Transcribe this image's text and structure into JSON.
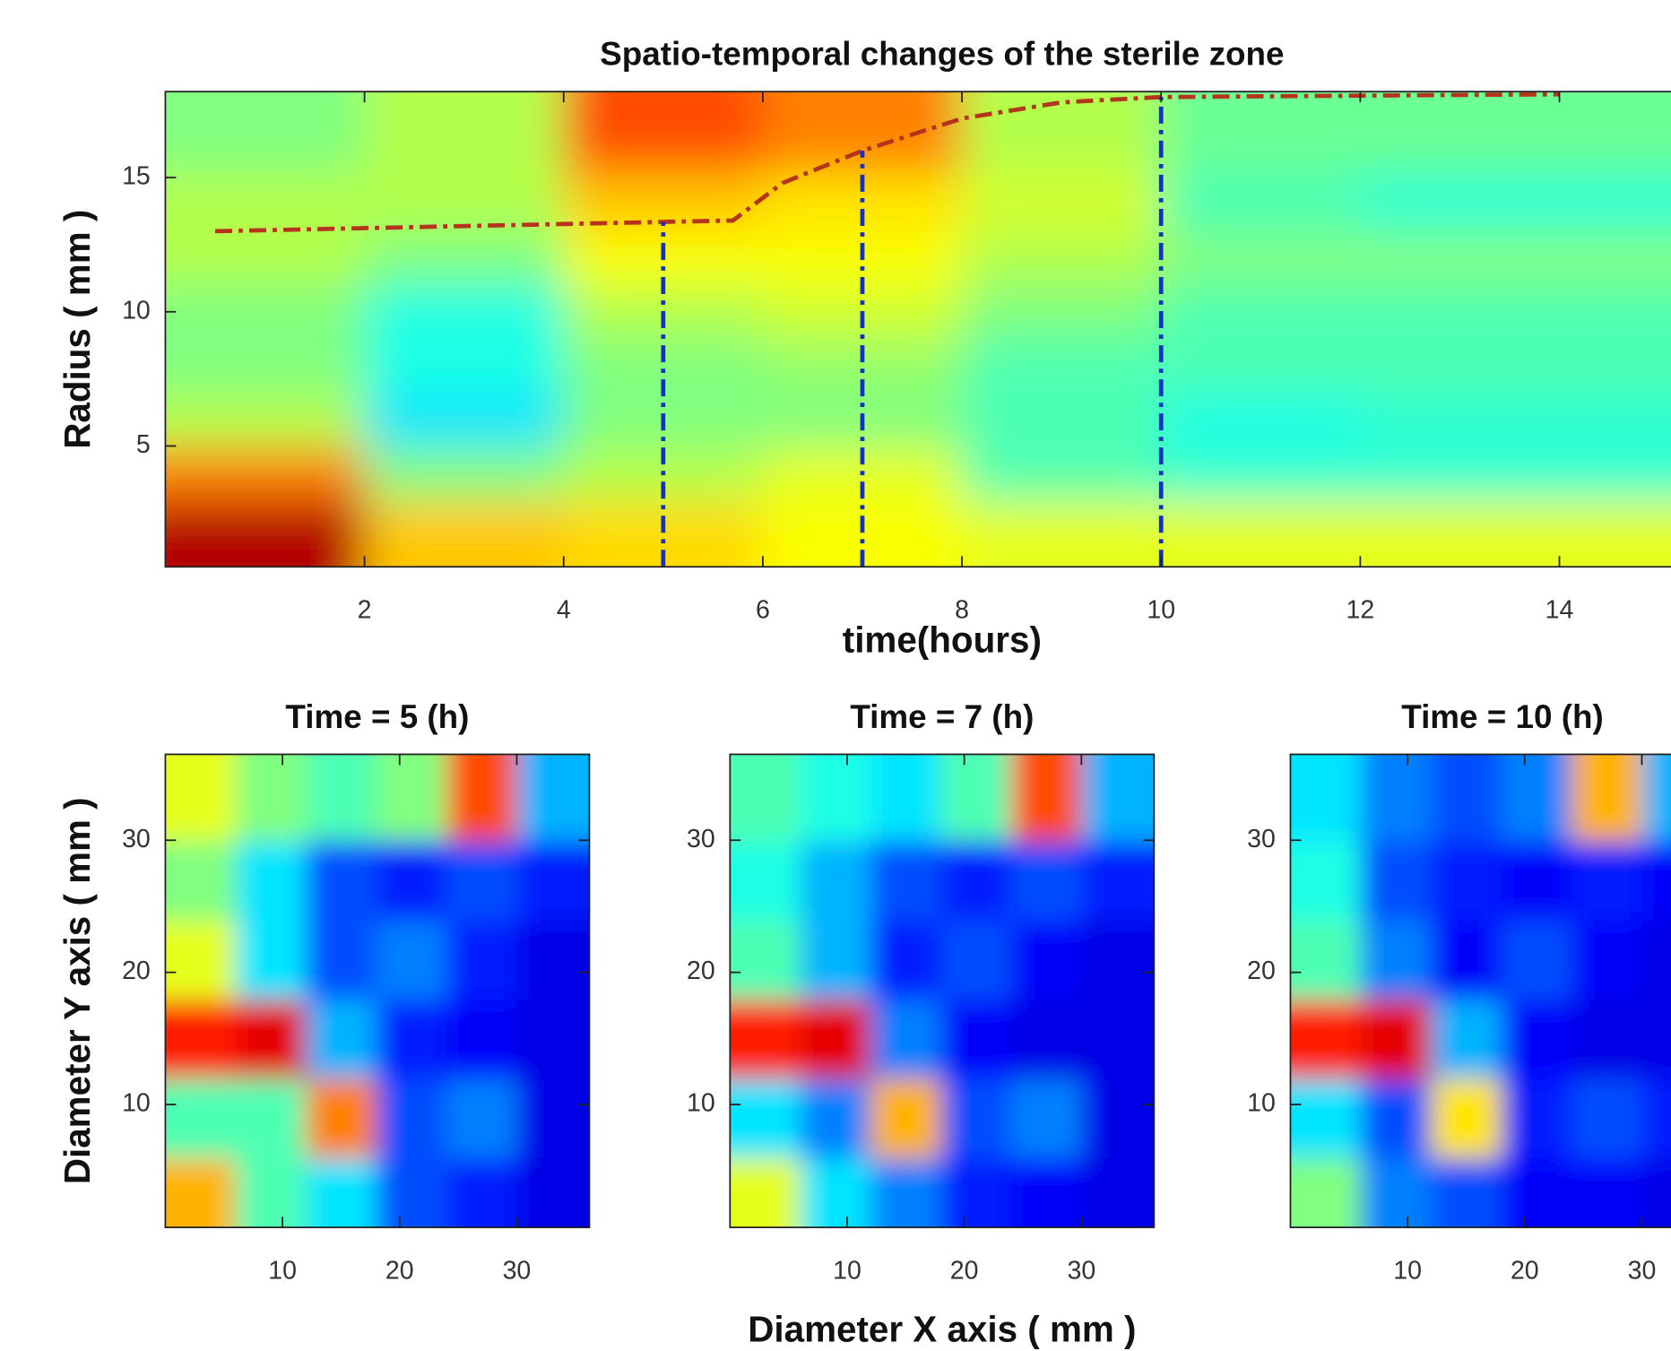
{
  "chart_data": [
    {
      "type": "heatmap",
      "title": "Spatio-temporal changes of the sterile zone",
      "xlabel": "time(hours)",
      "ylabel": "Radius ( mm )",
      "xlim": [
        0,
        15.6
      ],
      "ylim": [
        0.5,
        18.2
      ],
      "xticks": [
        2,
        4,
        6,
        8,
        10,
        12,
        14
      ],
      "yticks": [
        5,
        10,
        15
      ],
      "colormap": "jet",
      "x": [
        1,
        3,
        5,
        7,
        9,
        11,
        13,
        15
      ],
      "y": [
        2,
        4,
        6,
        8,
        10,
        12,
        14,
        16.5
      ],
      "z": [
        [
          0.95,
          0.68,
          0.66,
          0.62,
          0.6,
          0.6,
          0.6,
          0.6
        ],
        [
          0.75,
          0.5,
          0.55,
          0.6,
          0.45,
          0.42,
          0.42,
          0.42
        ],
        [
          0.55,
          0.35,
          0.5,
          0.5,
          0.45,
          0.4,
          0.42,
          0.42
        ],
        [
          0.5,
          0.4,
          0.5,
          0.52,
          0.45,
          0.45,
          0.45,
          0.45
        ],
        [
          0.5,
          0.4,
          0.55,
          0.58,
          0.5,
          0.45,
          0.45,
          0.45
        ],
        [
          0.55,
          0.5,
          0.62,
          0.62,
          0.55,
          0.5,
          0.5,
          0.5
        ],
        [
          0.55,
          0.55,
          0.68,
          0.65,
          0.58,
          0.45,
          0.42,
          0.42
        ],
        [
          0.5,
          0.55,
          0.8,
          0.75,
          0.55,
          0.48,
          0.48,
          0.48
        ]
      ],
      "series": [
        {
          "color": "#b5341c",
          "style": "dashdot",
          "x": [
            0.5,
            5.7,
            6.2,
            7,
            8,
            9,
            10,
            14
          ],
          "values": [
            13,
            13.4,
            14.8,
            16,
            17.2,
            17.8,
            18,
            18.1
          ]
        }
      ],
      "vlines": {
        "color": "#1530c8",
        "style": "dashdot",
        "x": [
          5,
          7,
          10
        ]
      }
    },
    {
      "type": "image",
      "title": "Time = 5 (h)",
      "ylabel": "Diameter Y axis ( mm )",
      "xlim": [
        0,
        36.2
      ],
      "ylim": [
        0.7,
        36.5
      ],
      "xticks": [
        10,
        20,
        30
      ],
      "yticks": [
        10,
        20,
        30
      ],
      "colormap": "jet",
      "x": [
        3,
        9,
        15,
        21,
        27,
        33
      ],
      "y": [
        3,
        9,
        15,
        21,
        27,
        33
      ],
      "z": [
        [
          0.7,
          0.45,
          0.35,
          0.2,
          0.15,
          0.1
        ],
        [
          0.45,
          0.45,
          0.75,
          0.2,
          0.25,
          0.1
        ],
        [
          0.85,
          0.9,
          0.3,
          0.15,
          0.12,
          0.1
        ],
        [
          0.6,
          0.35,
          0.2,
          0.25,
          0.15,
          0.1
        ],
        [
          0.5,
          0.35,
          0.2,
          0.15,
          0.2,
          0.15
        ],
        [
          0.6,
          0.5,
          0.45,
          0.5,
          0.8,
          0.3
        ]
      ]
    },
    {
      "type": "image",
      "title": "Time = 7 (h)",
      "xlabel": "Diameter X axis ( mm )",
      "xlim": [
        0,
        36.2
      ],
      "ylim": [
        0.7,
        36.5
      ],
      "xticks": [
        10,
        20,
        30
      ],
      "yticks": [
        10,
        20,
        30
      ],
      "colormap": "jet",
      "x": [
        3,
        9,
        15,
        21,
        27,
        33
      ],
      "y": [
        3,
        9,
        15,
        21,
        27,
        33
      ],
      "z": [
        [
          0.6,
          0.35,
          0.25,
          0.15,
          0.12,
          0.1
        ],
        [
          0.35,
          0.25,
          0.7,
          0.2,
          0.25,
          0.1
        ],
        [
          0.85,
          0.9,
          0.25,
          0.12,
          0.1,
          0.1
        ],
        [
          0.45,
          0.3,
          0.15,
          0.2,
          0.12,
          0.1
        ],
        [
          0.4,
          0.3,
          0.2,
          0.15,
          0.2,
          0.15
        ],
        [
          0.45,
          0.4,
          0.35,
          0.45,
          0.8,
          0.3
        ]
      ]
    },
    {
      "type": "image",
      "title": "Time = 10 (h)",
      "xlim": [
        0,
        36.2
      ],
      "ylim": [
        0.7,
        36.5
      ],
      "xticks": [
        10,
        20,
        30
      ],
      "yticks": [
        10,
        20,
        30
      ],
      "colormap": "jet",
      "x": [
        3,
        9,
        15,
        21,
        27,
        33
      ],
      "y": [
        3,
        9,
        15,
        21,
        27,
        33
      ],
      "z": [
        [
          0.5,
          0.25,
          0.2,
          0.12,
          0.12,
          0.1
        ],
        [
          0.35,
          0.2,
          0.65,
          0.15,
          0.2,
          0.15
        ],
        [
          0.85,
          0.9,
          0.3,
          0.12,
          0.1,
          0.1
        ],
        [
          0.45,
          0.25,
          0.12,
          0.2,
          0.12,
          0.1
        ],
        [
          0.4,
          0.2,
          0.15,
          0.12,
          0.15,
          0.12
        ],
        [
          0.35,
          0.25,
          0.2,
          0.25,
          0.7,
          0.3
        ]
      ]
    }
  ]
}
